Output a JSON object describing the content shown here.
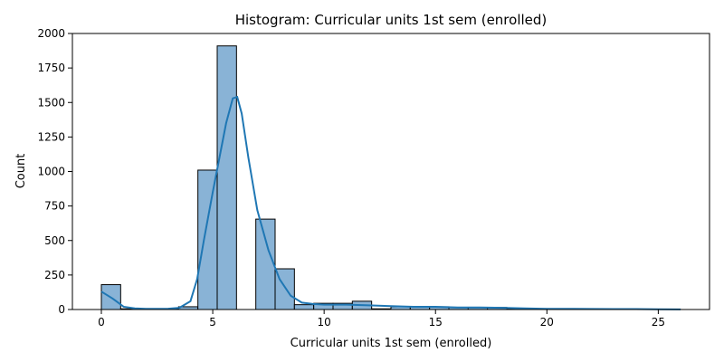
{
  "chart_data": {
    "type": "bar",
    "title": "Histogram: Curricular units 1st sem (enrolled)",
    "xlabel": "Curricular units 1st sem (enrolled)",
    "ylabel": "Count",
    "xlim": [
      -1.3,
      27.3
    ],
    "ylim": [
      0,
      2000
    ],
    "x_ticks": [
      0,
      5,
      10,
      15,
      20,
      25
    ],
    "y_ticks": [
      0,
      250,
      500,
      750,
      1000,
      1250,
      1500,
      1750,
      2000
    ],
    "bin_width": 0.8667,
    "bins": [
      {
        "x0": 0.0,
        "count": 180
      },
      {
        "x0": 0.8667,
        "count": 5
      },
      {
        "x0": 1.7333,
        "count": 5
      },
      {
        "x0": 2.6,
        "count": 5
      },
      {
        "x0": 3.4667,
        "count": 20
      },
      {
        "x0": 4.3333,
        "count": 1010
      },
      {
        "x0": 5.2,
        "count": 1910
      },
      {
        "x0": 6.0667,
        "count": 0
      },
      {
        "x0": 6.9333,
        "count": 655
      },
      {
        "x0": 7.8,
        "count": 295
      },
      {
        "x0": 8.6667,
        "count": 35
      },
      {
        "x0": 9.5333,
        "count": 45
      },
      {
        "x0": 10.4,
        "count": 45
      },
      {
        "x0": 11.2667,
        "count": 60
      },
      {
        "x0": 12.1333,
        "count": 5
      },
      {
        "x0": 13.0,
        "count": 20
      },
      {
        "x0": 13.8667,
        "count": 20
      },
      {
        "x0": 14.7333,
        "count": 20
      },
      {
        "x0": 15.6,
        "count": 15
      },
      {
        "x0": 16.4667,
        "count": 15
      },
      {
        "x0": 17.3333,
        "count": 15
      },
      {
        "x0": 18.2,
        "count": 5
      },
      {
        "x0": 19.0667,
        "count": 3
      },
      {
        "x0": 19.9333,
        "count": 3
      },
      {
        "x0": 20.8,
        "count": 2
      },
      {
        "x0": 21.6667,
        "count": 2
      },
      {
        "x0": 22.5333,
        "count": 2
      },
      {
        "x0": 23.4,
        "count": 1
      },
      {
        "x0": 24.2667,
        "count": 1
      },
      {
        "x0": 25.1333,
        "count": 1
      }
    ],
    "kde": {
      "x": [
        0,
        0.5,
        1,
        1.5,
        2,
        2.5,
        3,
        3.5,
        4,
        4.3,
        4.6,
        5,
        5.3,
        5.6,
        5.9,
        6.1,
        6.3,
        6.6,
        7,
        7.5,
        8,
        8.5,
        9,
        9.5,
        10,
        11,
        12,
        13,
        14,
        15,
        16,
        17,
        18,
        19,
        20,
        21,
        22,
        23,
        24,
        25,
        26
      ],
      "y": [
        130,
        80,
        20,
        8,
        5,
        5,
        6,
        12,
        60,
        220,
        500,
        850,
        1100,
        1350,
        1530,
        1540,
        1420,
        1100,
        720,
        430,
        220,
        100,
        50,
        40,
        35,
        35,
        30,
        25,
        20,
        20,
        15,
        15,
        12,
        8,
        5,
        5,
        4,
        3,
        3,
        2,
        1
      ]
    },
    "grid": false,
    "legend": "none",
    "colors": {
      "bar_fill": "#89b3d6",
      "bar_edge": "#000000",
      "kde_line": "#1f77b4"
    }
  }
}
